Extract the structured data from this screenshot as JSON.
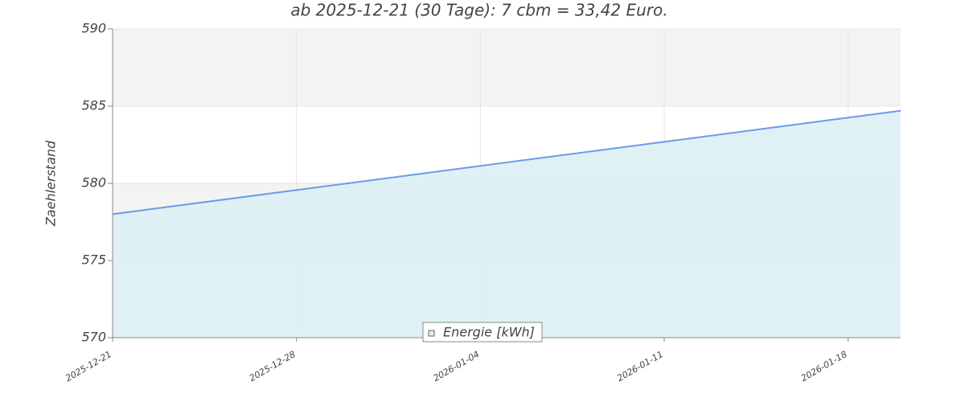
{
  "chart_data": {
    "type": "area-line",
    "title": "ab 2025-12-21 (30 Tage): 7 cbm = 33,42 Euro.",
    "y_label": "Zaehlerstand",
    "x": [
      "2025-12-21",
      "2026-01-20"
    ],
    "series": [
      {
        "name": "Energie [kWh]",
        "color": "#6b9be8",
        "fill": "#dbeef4",
        "values": [
          578,
          584.7
        ]
      }
    ],
    "xlim": [
      "2025-12-21",
      "2026-01-20"
    ],
    "xticks": [
      "2025-12-21",
      "2025-12-28",
      "2026-01-04",
      "2026-01-11",
      "2026-01-18"
    ],
    "ylim": [
      570,
      590
    ],
    "yticks": [
      570,
      575,
      580,
      585,
      590
    ],
    "grid": true
  }
}
